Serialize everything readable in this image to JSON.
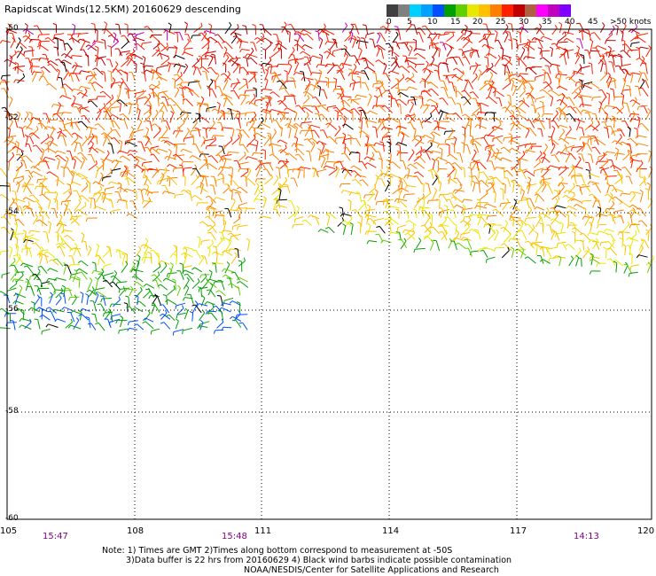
{
  "title": "Rapidscat Winds(12.5KM) 20160629 descending",
  "legend": {
    "colors": [
      "#404040",
      "#808080",
      "#00d0ff",
      "#00a0ff",
      "#0050ff",
      "#00a000",
      "#60d000",
      "#e8e800",
      "#ffc000",
      "#ff8000",
      "#ff2000",
      "#c00000",
      "#b06040",
      "#ff00ff",
      "#c000c0",
      "#8000ff"
    ],
    "labels": [
      "0",
      "5",
      "10",
      "15",
      "20",
      "25",
      "30",
      "35",
      "40",
      "45",
      ">50 knots"
    ]
  },
  "map": {
    "lat_labels": [
      "-50",
      "-52",
      "-54",
      "-56",
      "-58",
      "-60"
    ],
    "lon_labels": [
      "105",
      "108",
      "111",
      "114",
      "117",
      "120"
    ],
    "time_labels": [
      "15:47",
      "15:48",
      "14:13"
    ]
  },
  "note": {
    "line1": "Note: 1) Times are GMT 2)Times along bottom correspond to measurement at -50S",
    "line2": "3)Data buffer is 22 hrs from 20160629 4) Black wind barbs indicate possible contamination",
    "line3": "NOAA/NESDIS/Center for Satellite Applications and Research"
  }
}
